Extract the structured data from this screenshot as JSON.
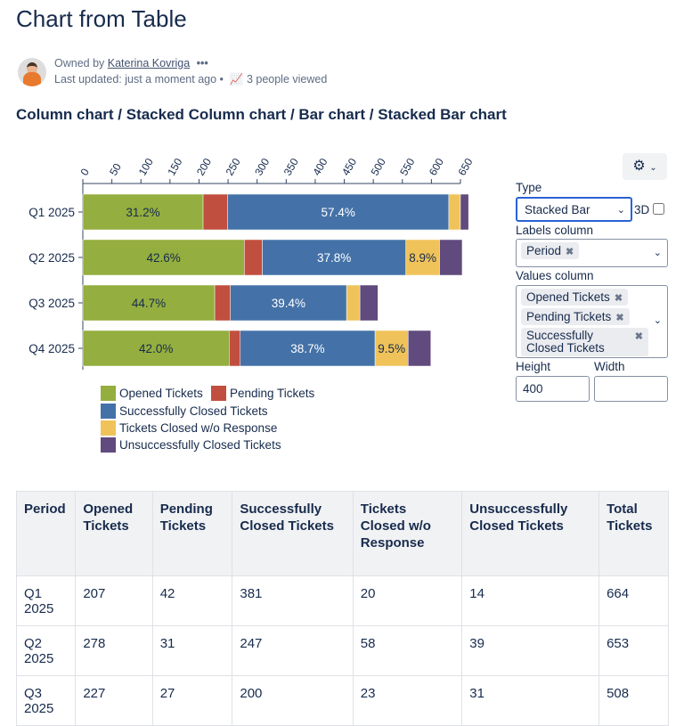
{
  "page": {
    "title": "Chart from Table",
    "owner_prefix": "Owned by",
    "owner": "Katerina Kovriga",
    "more": "•••",
    "last_updated": "Last updated: just a moment ago",
    "dot": "•",
    "views": "3 people viewed",
    "subtitle": "Column chart / Stacked Column chart / Bar chart / Stacked Bar chart"
  },
  "panel": {
    "type_label": "Type",
    "type_value": "Stacked Bar",
    "three_d": "3D",
    "labels_label": "Labels column",
    "labels_tags": [
      "Period"
    ],
    "values_label": "Values column",
    "values_tags": [
      "Opened Tickets",
      "Pending Tickets",
      "Successfully Closed Tickets"
    ],
    "height_label": "Height",
    "height_value": "400",
    "width_label": "Width",
    "width_value": ""
  },
  "chart_data": {
    "type": "bar",
    "stacked": true,
    "orientation": "horizontal",
    "categories": [
      "Q1 2025",
      "Q2 2025",
      "Q3 2025",
      "Q4 2025"
    ],
    "xlim": [
      0,
      650
    ],
    "ticks": [
      0,
      50,
      100,
      150,
      200,
      250,
      300,
      350,
      400,
      450,
      500,
      550,
      600,
      650
    ],
    "series": [
      {
        "name": "Opened Tickets",
        "color": "#94ae3f",
        "values": [
          207,
          278,
          227,
          252
        ]
      },
      {
        "name": "Pending Tickets",
        "color": "#c14f3f",
        "values": [
          42,
          31,
          27,
          19
        ]
      },
      {
        "name": "Successfully Closed Tickets",
        "color": "#4472a8",
        "values": [
          381,
          247,
          200,
          232
        ]
      },
      {
        "name": "Tickets Closed w/o Response",
        "color": "#f0c35a",
        "values": [
          20,
          58,
          23,
          57
        ]
      },
      {
        "name": "Unsuccessfully Closed Tickets",
        "color": "#614a7d",
        "values": [
          14,
          39,
          31,
          39
        ]
      }
    ],
    "data_labels": [
      [
        "31.2%",
        "",
        "57.4%",
        "",
        ""
      ],
      [
        "42.6%",
        "",
        "37.8%",
        "8.9%",
        ""
      ],
      [
        "44.7%",
        "",
        "39.4%",
        "",
        ""
      ],
      [
        "42.0%",
        "",
        "38.7%",
        "9.5%",
        ""
      ]
    ],
    "legend": "bottom-left"
  },
  "table": {
    "headers": [
      "Period",
      "Opened Tickets",
      "Pending Tickets",
      "Successfully Closed Tickets",
      "Tickets Closed w/o Response",
      "Unsuccessfully Closed Tickets",
      "Total Tickets"
    ],
    "rows": [
      [
        "Q1 2025",
        "207",
        "42",
        "381",
        "20",
        "14",
        "664"
      ],
      [
        "Q2 2025",
        "278",
        "31",
        "247",
        "58",
        "39",
        "653"
      ],
      [
        "Q3 2025",
        "227",
        "27",
        "200",
        "23",
        "31",
        "508"
      ]
    ]
  }
}
